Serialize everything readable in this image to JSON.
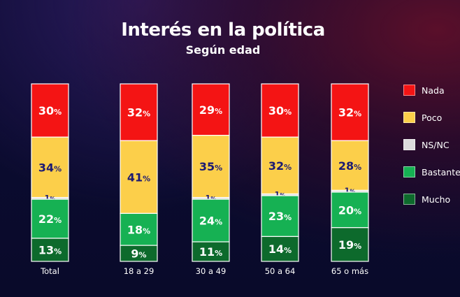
{
  "chart_data": {
    "type": "bar",
    "stacked": true,
    "title": "Interés en la política",
    "subtitle": "Según edad",
    "categories": [
      "Total",
      "18 a 29",
      "30 a 49",
      "50 a 64",
      "65 o más"
    ],
    "series": [
      {
        "name": "Nada",
        "color": "#f41414",
        "label_color": "#ffffff",
        "values": [
          30,
          32,
          29,
          30,
          32
        ]
      },
      {
        "name": "Poco",
        "color": "#fccf4a",
        "label_color": "#1c1a73",
        "values": [
          34,
          41,
          35,
          32,
          28
        ]
      },
      {
        "name": "NS/NC",
        "color": "#dcdcdc",
        "label_color": "#1c1a73",
        "values": [
          1,
          0,
          1,
          1,
          1
        ]
      },
      {
        "name": "Bastante",
        "color": "#16b153",
        "label_color": "#ffffff",
        "values": [
          22,
          18,
          24,
          23,
          20
        ]
      },
      {
        "name": "Mucho",
        "color": "#0d6a2c",
        "label_color": "#ffffff",
        "values": [
          13,
          9,
          11,
          14,
          19
        ]
      }
    ],
    "unit": "%",
    "legend_position": "right",
    "grid": false
  }
}
